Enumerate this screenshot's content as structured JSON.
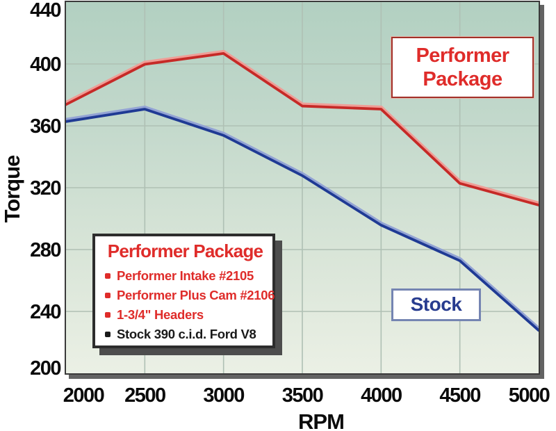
{
  "chart_data": {
    "type": "line",
    "title": "",
    "xlabel": "RPM",
    "ylabel": "Torque",
    "xlim": [
      2000,
      5000
    ],
    "ylim": [
      200,
      440
    ],
    "xticks": [
      2000,
      2500,
      3000,
      3500,
      4000,
      4500,
      5000
    ],
    "yticks": [
      440,
      400,
      360,
      320,
      280,
      240,
      200
    ],
    "grid": true,
    "legend_position": "in-plot labels",
    "x": [
      2000,
      2500,
      3000,
      3500,
      4000,
      4500,
      5000
    ],
    "series": [
      {
        "name": "Performer Package",
        "color": "#c62a27",
        "highlight": "#ef9d96",
        "values": [
          374,
          400,
          407,
          373,
          371,
          323,
          309
        ]
      },
      {
        "name": "Stock",
        "color": "#1f3a94",
        "highlight": "#93a3d4",
        "values": [
          363,
          371,
          354,
          328,
          296,
          273,
          228
        ]
      }
    ]
  },
  "annotations": {
    "performer_box": {
      "line1": "Performer",
      "line2": "Package",
      "color": "#df2c2a"
    },
    "stock_box": {
      "label": "Stock",
      "color": "#283c8f"
    }
  },
  "legend": {
    "title": "Performer Package",
    "title_color": "#df2c2a",
    "items": [
      {
        "text": "Performer Intake #2105",
        "color": "#df2c2a"
      },
      {
        "text": "Performer Plus Cam #2106",
        "color": "#df2c2a"
      },
      {
        "text": "1-3/4\" Headers",
        "color": "#df2c2a"
      },
      {
        "text": "Stock 390 c.i.d. Ford V8",
        "color": "#1a1a1a"
      }
    ]
  },
  "colors": {
    "plot_bg_top": "#b2d0c1",
    "plot_bg_bottom": "#ebf0e5",
    "gridline": "#afc0b4",
    "frame": "#3a3a3a",
    "axis_text": "#0b0b0b"
  }
}
